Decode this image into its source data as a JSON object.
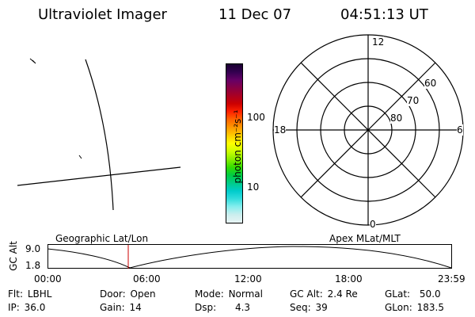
{
  "header": {
    "title": "Ultraviolet Imager",
    "date": "11 Dec 07",
    "time": "04:51:13 UT"
  },
  "colorbar": {
    "unit_label": "photon cm⁻²s⁻¹",
    "ticks": [
      "100",
      "10"
    ],
    "colors": [
      "#1a0030",
      "#330050",
      "#660066",
      "#880044",
      "#aa0022",
      "#cc0000",
      "#ff2200",
      "#ff6600",
      "#ff9900",
      "#ffcc00",
      "#ffff00",
      "#ccff00",
      "#88ee00",
      "#33dd00",
      "#00cc44",
      "#00cc88",
      "#00cccc",
      "#33dddd",
      "#88eeee",
      "#cceeee",
      "#e8f4f4"
    ]
  },
  "polar": {
    "mlt_labels": {
      "top": "12",
      "left": "18",
      "right": "6",
      "bottom": "0"
    },
    "lat_labels": [
      "60",
      "70",
      "80"
    ]
  },
  "timeline": {
    "alt_label": "GC Alt",
    "yticks": [
      "9.0",
      "1.8"
    ],
    "left_title": "Geographic Lat/Lon",
    "right_title": "Apex MLat/MLT",
    "xticks": [
      "00:00",
      "06:00",
      "12:00",
      "18:00",
      "23:59"
    ],
    "marker_color": "#cc0000",
    "marker_time_fraction": 0.2
  },
  "footer": {
    "row1": [
      {
        "label": "Flt:",
        "value": "LBHL"
      },
      {
        "label": "Door:",
        "value": "Open"
      },
      {
        "label": "Mode:",
        "value": "Normal"
      },
      {
        "label": "GC Alt:",
        "value": "2.4 Re"
      },
      {
        "label": "GLat:",
        "value": "50.0"
      }
    ],
    "row2": [
      {
        "label": "IP:",
        "value": "36.0"
      },
      {
        "label": "Gain:",
        "value": "14"
      },
      {
        "label": "Dsp:",
        "value": "4.3"
      },
      {
        "label": "Seq:",
        "value": "39"
      },
      {
        "label": "GLon:",
        "value": "183.5"
      }
    ]
  }
}
